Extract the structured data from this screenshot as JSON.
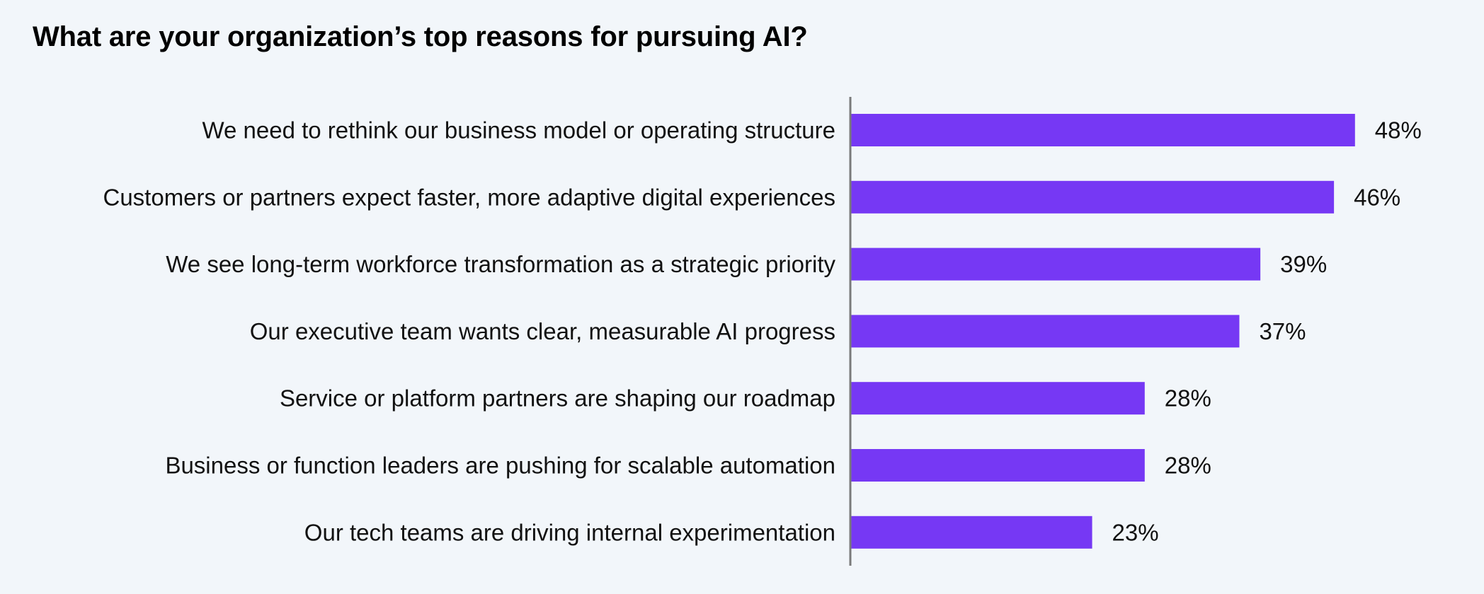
{
  "chart_data": {
    "type": "bar",
    "orientation": "horizontal",
    "title": "What are your organization’s top reasons for pursuing AI?",
    "categories": [
      "We need to rethink our business model or operating structure",
      "Customers or partners expect faster, more adaptive digital experiences",
      "We see long-term workforce transformation as a strategic priority",
      "Our executive team wants clear, measurable AI progress",
      "Service or platform partners are shaping our roadmap",
      "Business or function leaders are pushing for scalable automation",
      "Our tech teams are driving internal experimentation"
    ],
    "values": [
      48,
      46,
      39,
      37,
      28,
      28,
      23
    ],
    "value_labels": [
      "48%",
      "46%",
      "39%",
      "37%",
      "28%",
      "28%",
      "23%"
    ],
    "unit": "%",
    "xlim": [
      0,
      100
    ],
    "grid": false,
    "legend": "none",
    "colors": {
      "bar": "#7638f4",
      "axis": "#7a7a7a",
      "background": "#f2f6fa",
      "text": "#111111"
    }
  }
}
